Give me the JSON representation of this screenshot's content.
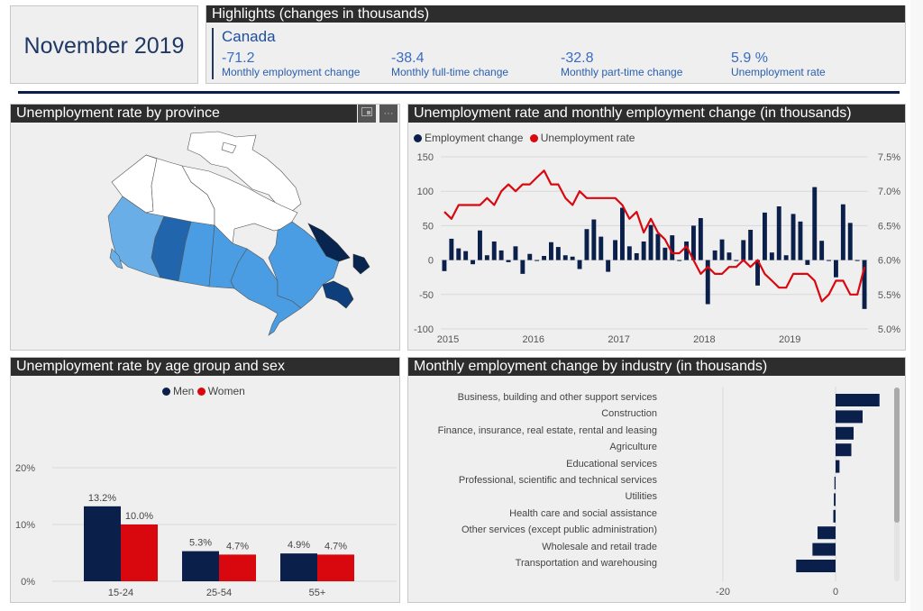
{
  "header": {
    "date": "November 2019",
    "highlights_title": "Highlights (changes in thousands)",
    "region": "Canada",
    "kpis": [
      {
        "value": "-71.2",
        "label": "Monthly employment change"
      },
      {
        "value": "-38.4",
        "label": "Monthly full-time change"
      },
      {
        "value": "-32.8",
        "label": "Monthly part-time change"
      },
      {
        "value": "5.9 %",
        "label": "Unemployment rate"
      }
    ]
  },
  "map_panel": {
    "title": "Unemployment rate by province",
    "focus_icon": "focus-mode-icon",
    "more_icon": "more-options-icon",
    "more_glyph": "···",
    "colors": {
      "territories": "#ffffff",
      "bc": "#6aaee8",
      "alberta": "#2166ac",
      "saskatchewan": "#4a9de2",
      "manitoba": "#4a9de2",
      "ontario": "#4a9de2",
      "quebec": "#4a9de2",
      "atlantic": "#0e3f7c",
      "newfoundland": "#08254f"
    }
  },
  "combo_panel": {
    "title": "Unemployment rate and monthly employment change (in thousands)",
    "legend": [
      {
        "label": "Employment change",
        "color": "#0b1f4b"
      },
      {
        "label": "Unemployment rate",
        "color": "#d9080f"
      }
    ]
  },
  "age_panel": {
    "title": "Unemployment rate by age group and sex",
    "legend": [
      {
        "label": "Men",
        "color": "#0b1f4b"
      },
      {
        "label": "Women",
        "color": "#d9080f"
      }
    ]
  },
  "industry_panel": {
    "title": "Monthly employment change by industry (in thousands)"
  },
  "chart_data": [
    {
      "type": "bar+line",
      "title": "Unemployment rate and monthly employment change (in thousands)",
      "x_ticks": [
        "2015",
        "2016",
        "2017",
        "2018",
        "2019"
      ],
      "y_left": {
        "ticks": [
          "150",
          "100",
          "50",
          "0",
          "-50",
          "-100"
        ],
        "range": [
          -100,
          150
        ]
      },
      "y_right": {
        "ticks": [
          "7.5%",
          "7.0%",
          "6.5%",
          "6.0%",
          "5.5%",
          "5.0%"
        ],
        "range": [
          5.0,
          7.5
        ]
      },
      "grid": true,
      "legend_position": "top-left",
      "start": "2015-01",
      "series": [
        {
          "name": "Employment change",
          "type": "bar",
          "color": "#0b1f4b",
          "values": [
            -16,
            31,
            17,
            13,
            -6,
            43,
            7,
            27,
            14,
            -3,
            20,
            -20,
            9,
            -1,
            6,
            26,
            19,
            7,
            5,
            -13,
            45,
            59,
            34,
            -17,
            29,
            76,
            20,
            10,
            27,
            51,
            38,
            18,
            36,
            -1,
            27,
            50,
            61,
            -64,
            14,
            30,
            11,
            -1,
            29,
            44,
            -37,
            69,
            11,
            78,
            7,
            67,
            56,
            -7,
            106,
            28,
            -1,
            -25,
            81,
            54,
            -1,
            -71
          ]
        },
        {
          "name": "Unemployment rate",
          "type": "line",
          "color": "#d9080f",
          "axis": "right",
          "values": [
            6.7,
            6.6,
            6.8,
            6.8,
            6.8,
            6.8,
            6.9,
            6.8,
            7.0,
            7.1,
            7.0,
            7.1,
            7.1,
            7.2,
            7.3,
            7.1,
            7.1,
            6.9,
            6.8,
            7.0,
            6.9,
            6.9,
            6.9,
            6.9,
            6.9,
            6.8,
            6.6,
            6.7,
            6.4,
            6.6,
            6.4,
            6.3,
            6.1,
            6.1,
            6.2,
            6.0,
            5.8,
            5.9,
            5.8,
            5.8,
            5.9,
            5.9,
            6.0,
            5.9,
            6.0,
            5.8,
            5.7,
            5.6,
            5.6,
            5.8,
            5.8,
            5.8,
            5.7,
            5.4,
            5.5,
            5.7,
            5.7,
            5.5,
            5.5,
            5.9
          ]
        }
      ]
    },
    {
      "type": "bar",
      "title": "Unemployment rate by age group and sex",
      "categories": [
        "15-24",
        "25-54",
        "55+"
      ],
      "series": [
        {
          "name": "Men",
          "color": "#0b1f4b",
          "values": [
            13.2,
            5.3,
            4.9
          ],
          "labels": [
            "13.2%",
            "5.3%",
            "4.9%"
          ]
        },
        {
          "name": "Women",
          "color": "#d9080f",
          "values": [
            10.0,
            4.7,
            4.7
          ],
          "labels": [
            "10.0%",
            "4.7%",
            "4.7%"
          ]
        }
      ],
      "y_ticks": [
        "20%",
        "10%",
        "0%"
      ],
      "ylim": [
        0,
        25
      ],
      "grid": true,
      "legend_position": "top-center"
    },
    {
      "type": "bar",
      "orientation": "horizontal",
      "title": "Monthly employment change by industry (in thousands)",
      "categories": [
        "Business, building and other support services",
        "Construction",
        "Finance, insurance, real estate, rental and leasing",
        "Agriculture",
        "Educational services",
        "Professional, scientific and technical services",
        "Utilities",
        "Health care and social assistance",
        "Other services (except public administration)",
        "Wholesale and retail trade",
        "Transportation and warehousing"
      ],
      "values": [
        7.8,
        4.8,
        3.2,
        2.8,
        0.7,
        -0.2,
        -0.3,
        -0.4,
        -3.2,
        -4.1,
        -7.0
      ],
      "x_ticks": [
        "-20",
        "0"
      ],
      "xlim": [
        -28,
        10
      ],
      "color": "#0b1f4b",
      "grid": true
    }
  ]
}
